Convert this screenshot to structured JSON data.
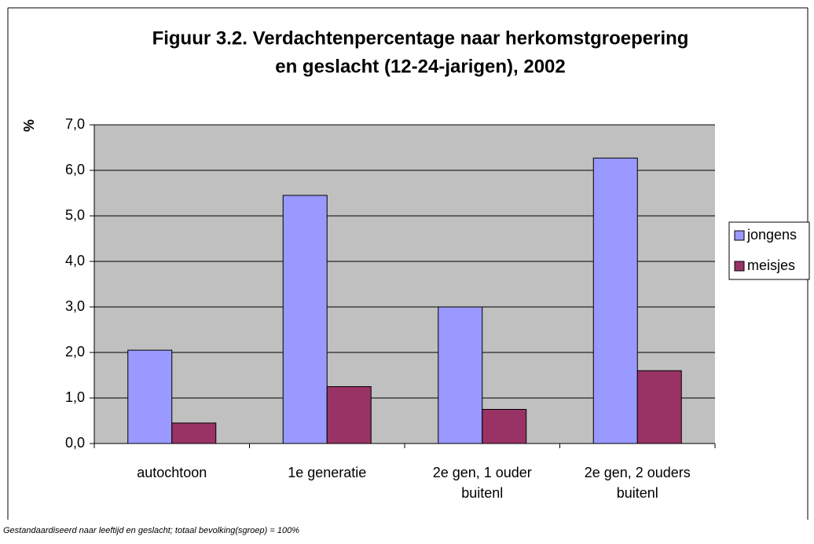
{
  "chart_data": {
    "type": "bar",
    "title": "Figuur 3.2. Verdachtenpercentage naar herkomstgroepering",
    "subtitle": "en geslacht (12-24-jarigen), 2002",
    "y_label": "%",
    "categories": [
      "autochtoon",
      "1e generatie",
      "2e gen, 1 ouder buitenl",
      "2e gen, 2 ouders buitenl"
    ],
    "series": [
      {
        "name": "jongens",
        "color": "#9999ff",
        "values": [
          2.05,
          5.45,
          3.0,
          6.27
        ]
      },
      {
        "name": "meisjes",
        "color": "#993366",
        "values": [
          0.45,
          1.25,
          0.75,
          1.6
        ]
      }
    ],
    "ylim": [
      0,
      7
    ],
    "yticks": [
      {
        "value": 0,
        "label": "0,0"
      },
      {
        "value": 1,
        "label": "1,0"
      },
      {
        "value": 2,
        "label": "2,0"
      },
      {
        "value": 3,
        "label": "3,0"
      },
      {
        "value": 4,
        "label": "4,0"
      },
      {
        "value": 5,
        "label": "5,0"
      },
      {
        "value": 6,
        "label": "6,0"
      },
      {
        "value": 7,
        "label": "7,0"
      }
    ],
    "grid": true,
    "legend": "right",
    "footnote": "Gestandaardiseerd naar leeftijd en geslacht; totaal bevolking(sgroep) = 100%"
  }
}
